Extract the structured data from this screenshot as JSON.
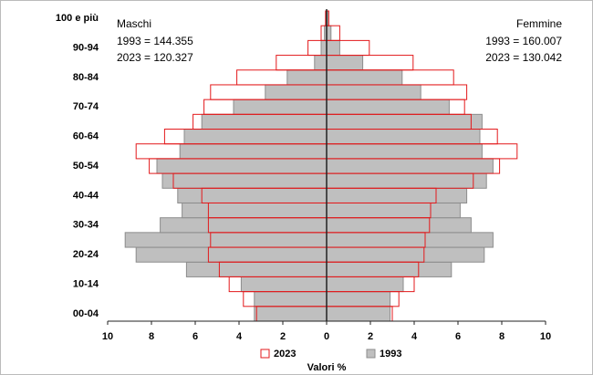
{
  "chart_data": {
    "type": "pyramid",
    "annotations": [
      "Maschi",
      "1993 = 144.355",
      "2023 = 120.327",
      "Femmine",
      "1993 = 160.007",
      "2023 = 130.042"
    ],
    "x_label": "Valori %",
    "categories": [
      "00-04",
      null,
      "10-14",
      null,
      "20-24",
      null,
      "30-34",
      null,
      "40-44",
      null,
      "50-54",
      null,
      "60-64",
      null,
      "70-74",
      null,
      "80-84",
      null,
      "90-94",
      null,
      "100 e più"
    ],
    "series": [
      {
        "name": "2023",
        "color": "#e31a1c",
        "male": [
          3.2,
          3.8,
          4.45,
          4.9,
          5.4,
          5.3,
          5.4,
          5.4,
          5.7,
          7.0,
          8.1,
          8.7,
          7.4,
          6.1,
          5.6,
          5.3,
          4.1,
          2.3,
          0.85,
          0.25,
          0.05
        ],
        "female": [
          3.0,
          3.3,
          4.0,
          4.2,
          4.45,
          4.5,
          4.7,
          4.75,
          5.0,
          6.7,
          7.9,
          8.7,
          7.8,
          6.6,
          6.3,
          6.4,
          5.8,
          3.95,
          1.95,
          0.6,
          0.1
        ]
      },
      {
        "name": "1993",
        "color": "#bfbfbf",
        "male": [
          3.3,
          3.3,
          3.9,
          6.4,
          8.7,
          9.2,
          7.6,
          6.6,
          6.8,
          7.5,
          7.75,
          6.7,
          6.5,
          5.7,
          4.25,
          2.8,
          1.8,
          0.55,
          0.25,
          0.1,
          0.02
        ],
        "female": [
          2.9,
          2.9,
          3.5,
          5.7,
          7.2,
          7.6,
          6.6,
          6.1,
          6.4,
          7.3,
          7.6,
          7.1,
          7.0,
          7.1,
          5.6,
          4.3,
          3.45,
          1.65,
          0.6,
          0.2,
          0.05
        ]
      }
    ],
    "xlim": [
      -10,
      10
    ],
    "xticks": [
      {
        "value": -10,
        "label": "10"
      },
      {
        "value": -8,
        "label": "8"
      },
      {
        "value": -6,
        "label": "6"
      },
      {
        "value": -4,
        "label": "4"
      },
      {
        "value": -2,
        "label": "2"
      },
      0,
      2,
      4,
      6,
      8,
      10
    ]
  }
}
